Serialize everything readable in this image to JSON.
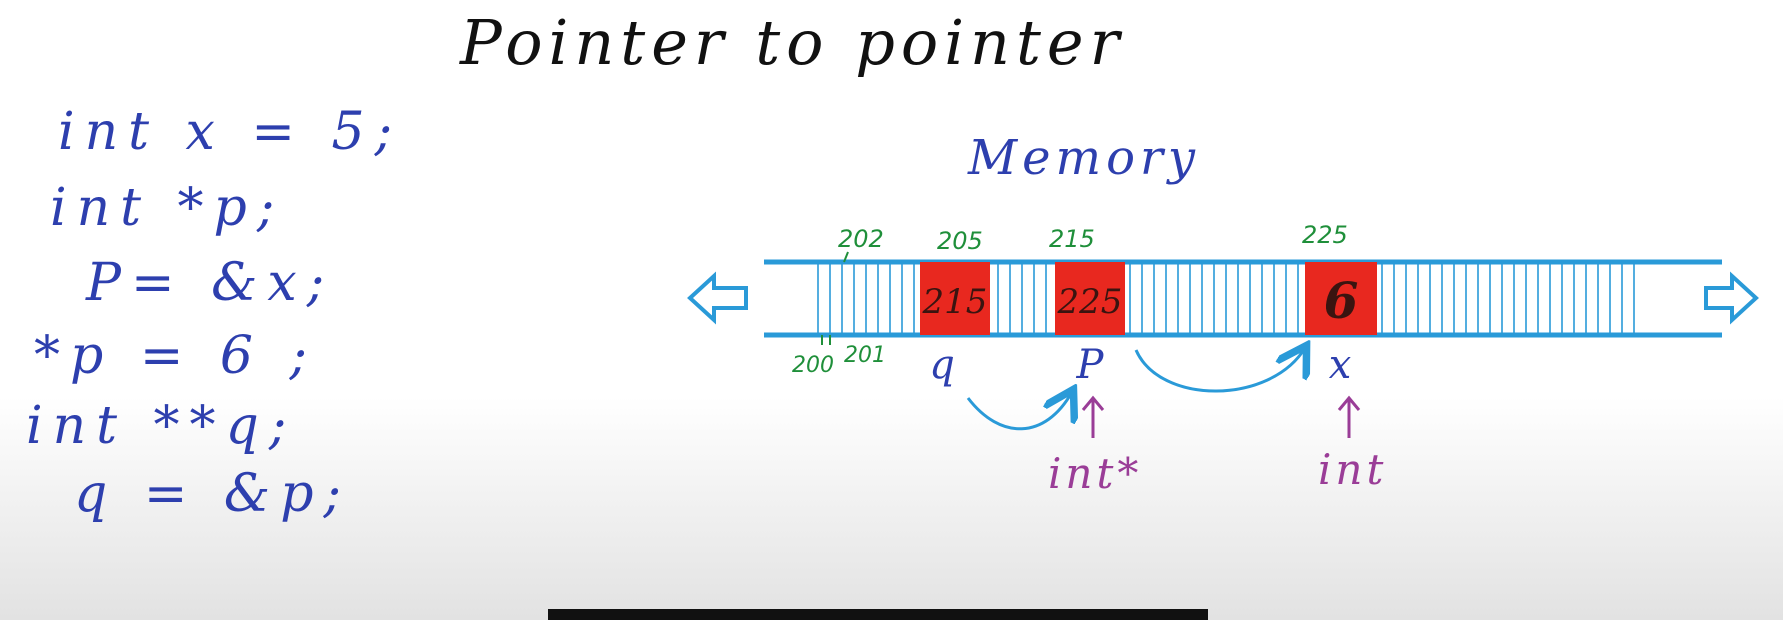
{
  "title": "Pointer to pointer",
  "code": [
    "int x = 5;",
    "int *p;",
    "P= &x;",
    "*p = 6 ;",
    "int **q;",
    "q = &p;"
  ],
  "memory": {
    "label": "Memory",
    "top_addresses": [
      "202",
      "205",
      "215",
      "225"
    ],
    "bottom_addresses": [
      "200",
      "201"
    ],
    "cells": [
      {
        "name": "q",
        "value": "215",
        "type": ""
      },
      {
        "name": "P",
        "value": "225",
        "type": "int*"
      },
      {
        "name": "x",
        "value": "6",
        "type": "int"
      }
    ]
  },
  "colors": {
    "ink_blue": "#2d3fae",
    "strip_blue": "#2a9ad8",
    "address_green": "#1f8f3a",
    "type_purple": "#9a3d97",
    "cell_red": "#e8281f"
  }
}
